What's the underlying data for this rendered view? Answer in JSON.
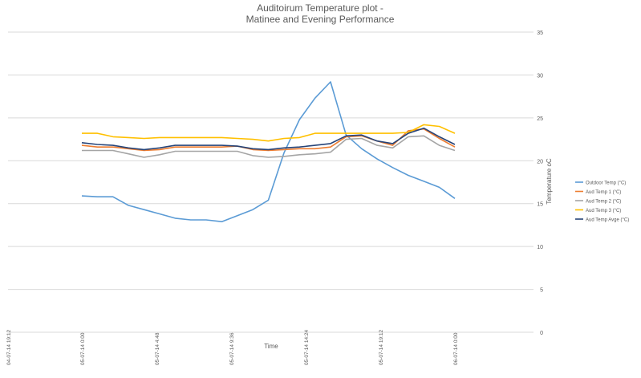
{
  "chart_data": {
    "type": "line",
    "title_lines": [
      "Auditoirum Temperature  plot -",
      "Matinee and Evening Performance"
    ],
    "xlabel": "Time",
    "ylabel": "Temperature oC",
    "ylim": [
      0,
      35
    ],
    "y_ticks": [
      0,
      5,
      10,
      15,
      20,
      25,
      30,
      35
    ],
    "y_axis_side": "right",
    "x_ticks": [
      "04-07-14 19:12",
      "05-07-14 0:00",
      "05-07-14 4:48",
      "05-07-14 9:36",
      "05-07-14 14:24",
      "05-07-14 19:12",
      "06-07-14 0:00"
    ],
    "grid": true,
    "legend_position": "right",
    "x_hours": [
      0,
      1,
      2,
      3,
      4,
      5,
      6,
      7,
      8,
      9,
      10,
      11,
      12,
      13,
      14,
      15,
      16,
      17,
      18,
      19,
      20,
      21,
      22,
      23,
      24
    ],
    "series": [
      {
        "name": "Outdoor Temp (°C)",
        "color": "#5b9bd5",
        "values": [
          15.9,
          15.8,
          15.8,
          14.8,
          14.3,
          13.8,
          13.3,
          13.1,
          13.1,
          12.9,
          13.6,
          14.3,
          15.4,
          20.9,
          24.8,
          27.3,
          29.2,
          23.0,
          21.4,
          20.2,
          19.2,
          18.3,
          17.6,
          16.9,
          15.6
        ]
      },
      {
        "name": "Aud Temp 1 (°C)",
        "color": "#ed7d31",
        "values": [
          21.8,
          21.6,
          21.6,
          21.4,
          21.2,
          21.3,
          21.6,
          21.6,
          21.6,
          21.6,
          21.7,
          21.3,
          21.2,
          21.3,
          21.4,
          21.4,
          21.6,
          22.8,
          22.9,
          22.3,
          21.8,
          23.5,
          23.7,
          22.6,
          21.6
        ]
      },
      {
        "name": "Aud Temp 2 (°C)",
        "color": "#a5a5a5",
        "values": [
          21.2,
          21.2,
          21.2,
          20.8,
          20.4,
          20.7,
          21.1,
          21.1,
          21.1,
          21.1,
          21.1,
          20.6,
          20.4,
          20.5,
          20.7,
          20.8,
          21.0,
          22.5,
          22.6,
          21.8,
          21.5,
          22.8,
          22.9,
          21.8,
          21.2
        ]
      },
      {
        "name": "Aud Temp 3 (°C)",
        "color": "#ffc000",
        "values": [
          23.2,
          23.2,
          22.8,
          22.7,
          22.6,
          22.7,
          22.7,
          22.7,
          22.7,
          22.7,
          22.6,
          22.5,
          22.3,
          22.6,
          22.7,
          23.2,
          23.2,
          23.2,
          23.2,
          23.2,
          23.2,
          23.3,
          24.2,
          24.0,
          23.2
        ]
      },
      {
        "name": "Aud Temp Avge (°C)",
        "color": "#264478",
        "values": [
          22.1,
          21.9,
          21.8,
          21.5,
          21.3,
          21.5,
          21.8,
          21.8,
          21.8,
          21.8,
          21.7,
          21.4,
          21.3,
          21.5,
          21.6,
          21.8,
          22.0,
          22.9,
          23.0,
          22.3,
          22.0,
          23.2,
          23.8,
          22.8,
          21.9
        ]
      }
    ]
  }
}
